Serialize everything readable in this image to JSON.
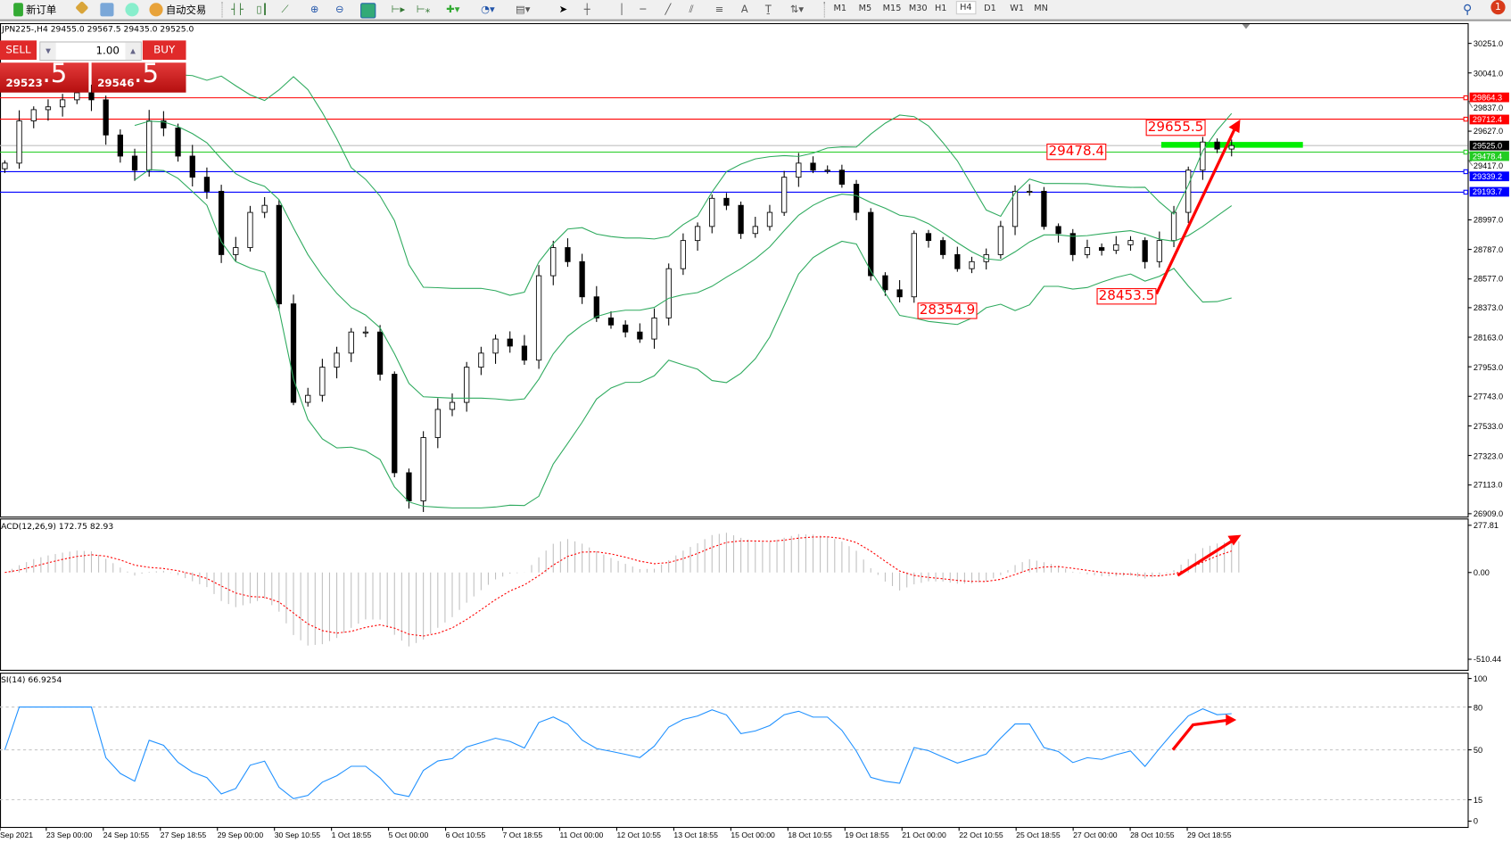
{
  "toolbar": {
    "new_order": "新订单",
    "auto_trade": "自动交易",
    "timeframes": [
      "M1",
      "M5",
      "M15",
      "M30",
      "H1",
      "H4",
      "D1",
      "W1",
      "MN"
    ],
    "active_timeframe": "H4",
    "notification_count": "1"
  },
  "chart": {
    "header": "JPN225-,H4  29455.0 29567.5 29435.0 29525.0",
    "trade_panel": {
      "sell_label": "SELL",
      "buy_label": "BUY",
      "lot": "1.00",
      "sell_price_main": "29523",
      "sell_price_big": ".5",
      "buy_price_main": "29546",
      "buy_price_big": ".5"
    },
    "price_axis": [
      "30251.0",
      "30041.0",
      "29837.0",
      "29627.0",
      "29417.0",
      "28997.0",
      "28787.0",
      "28577.0",
      "28373.0",
      "28163.0",
      "27953.0",
      "27743.0",
      "27533.0",
      "27323.0",
      "27113.0",
      "26909.0"
    ],
    "current_price": {
      "label": "29525.0",
      "value": 29525.0,
      "color": "#000000"
    },
    "levels": [
      {
        "label": "29864.3",
        "value": 29864.3,
        "color": "#ff0000"
      },
      {
        "label": "29712.4",
        "value": 29712.4,
        "color": "#ff0000"
      },
      {
        "label": "29478.4",
        "value": 29478.4,
        "color": "#22cc22"
      },
      {
        "label": "29339.2",
        "value": 29339.2,
        "color": "#0000ff"
      },
      {
        "label": "29193.7",
        "value": 29193.7,
        "color": "#0000ff"
      }
    ],
    "annotations": [
      "29655.5",
      "29478.4",
      "28354.9",
      "28453.5"
    ],
    "closes": [
      29400,
      29700,
      29780,
      29800,
      29850,
      29900,
      29850,
      29600,
      29450,
      29350,
      29700,
      29650,
      29450,
      29300,
      29200,
      28750,
      28800,
      29050,
      29100,
      28400,
      27700,
      27750,
      27950,
      28050,
      28200,
      28200,
      27900,
      27200,
      27000,
      27450,
      27650,
      27700,
      27950,
      28050,
      28150,
      28100,
      28000,
      28600,
      28800,
      28700,
      28450,
      28300,
      28250,
      28200,
      28150,
      28300,
      28650,
      28850,
      28950,
      29150,
      29100,
      28900,
      28950,
      29050,
      29300,
      29400,
      29350,
      29350,
      29250,
      29050,
      28600,
      28500,
      28450,
      28900,
      28850,
      28750,
      28650,
      28700,
      28750,
      28950,
      29200,
      29200,
      28950,
      28900,
      28750,
      28800,
      28780,
      28820,
      28850,
      28700,
      28850,
      29050,
      29350,
      29550,
      29500,
      29525
    ],
    "bull_color": "#ffffff",
    "bear_color": "#000000",
    "band_color": "#2eaa5e"
  },
  "macd": {
    "label": "ACD(12,26,9) 172.75 82.93",
    "axis": [
      "277.81",
      "0.00",
      "-510.44"
    ],
    "signal_color": "#ff0000",
    "hist_color": "#c0c0c0"
  },
  "rsi": {
    "label": "SI(14) 66.9254",
    "axis": [
      "100",
      "80",
      "50",
      "15",
      "0"
    ],
    "line_color": "#1e90ff"
  },
  "time_axis": [
    "Sep 2021",
    "23 Sep 00:00",
    "24 Sep 10:55",
    "27 Sep 18:55",
    "29 Sep 00:00",
    "30 Sep 10:55",
    "1 Oct 18:55",
    "5 Oct 00:00",
    "6 Oct 10:55",
    "7 Oct 18:55",
    "11 Oct 00:00",
    "12 Oct 10:55",
    "13 Oct 18:55",
    "15 Oct 00:00",
    "18 Oct 10:55",
    "19 Oct 18:55",
    "21 Oct 00:00",
    "22 Oct 10:55",
    "25 Oct 18:55",
    "27 Oct 00:00",
    "28 Oct 10:55",
    "29 Oct 18:55"
  ]
}
